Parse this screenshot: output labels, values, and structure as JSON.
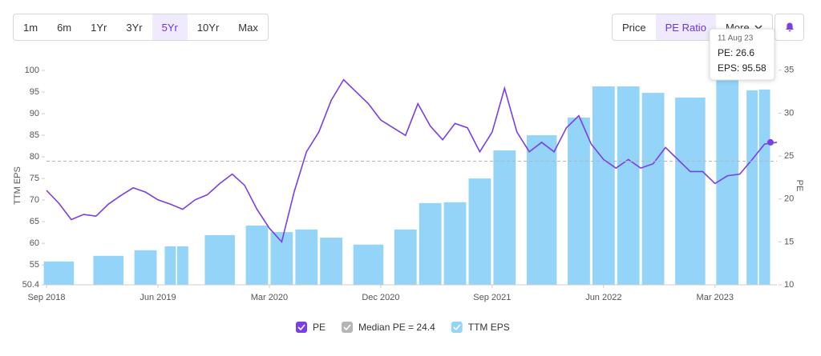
{
  "controls": {
    "ranges": [
      {
        "label": "1m"
      },
      {
        "label": "6m"
      },
      {
        "label": "1Yr"
      },
      {
        "label": "3Yr"
      },
      {
        "label": "5Yr",
        "active": true
      },
      {
        "label": "10Yr"
      },
      {
        "label": "Max"
      }
    ],
    "views": [
      {
        "label": "Price"
      },
      {
        "label": "PE Ratio",
        "active": true
      },
      {
        "label": "More"
      }
    ]
  },
  "tooltip": {
    "date": "11 Aug 23",
    "lines": [
      "PE: 26.6",
      "EPS: 95.58"
    ]
  },
  "chart_data": {
    "type": "bar",
    "y_label": "TTM EPS",
    "y2_label": "PE",
    "xlim": [
      "2018-09",
      "2023-08"
    ],
    "xticks": [
      {
        "value": "2018-09",
        "label": "Sep 2018"
      },
      {
        "value": "2019-06",
        "label": "Jun 2019"
      },
      {
        "value": "2020-03",
        "label": "Mar 2020"
      },
      {
        "value": "2020-12",
        "label": "Dec 2020"
      },
      {
        "value": "2021-09",
        "label": "Sep 2021"
      },
      {
        "value": "2022-06",
        "label": "Jun 2022"
      },
      {
        "value": "2023-03",
        "label": "Mar 2023"
      }
    ],
    "ylim": [
      50.4,
      105
    ],
    "yticks": [
      50.4,
      55,
      60,
      65,
      70,
      75,
      80,
      85,
      90,
      95,
      100
    ],
    "y2lim": [
      10,
      37.5
    ],
    "y2ticks": [
      10,
      15,
      20,
      25,
      30,
      35
    ],
    "series": [
      {
        "name": "PE",
        "type": "line",
        "axis": "y2",
        "color": "#7a3ee8",
        "x": [
          "2018-09",
          "2018-10",
          "2018-11",
          "2018-12",
          "2019-01",
          "2019-02",
          "2019-03",
          "2019-04",
          "2019-05",
          "2019-06",
          "2019-07",
          "2019-08",
          "2019-09",
          "2019-10",
          "2019-11",
          "2019-12",
          "2020-01",
          "2020-02",
          "2020-03",
          "2020-04",
          "2020-05",
          "2020-06",
          "2020-07",
          "2020-08",
          "2020-09",
          "2020-10",
          "2020-11",
          "2020-12",
          "2021-01",
          "2021-02",
          "2021-03",
          "2021-04",
          "2021-05",
          "2021-06",
          "2021-07",
          "2021-08",
          "2021-09",
          "2021-10",
          "2021-11",
          "2021-12",
          "2022-01",
          "2022-02",
          "2022-03",
          "2022-04",
          "2022-05",
          "2022-06",
          "2022-07",
          "2022-08",
          "2022-09",
          "2022-10",
          "2022-11",
          "2022-12",
          "2023-01",
          "2023-02",
          "2023-03",
          "2023-04",
          "2023-05",
          "2023-06",
          "2023-07",
          "2023-08"
        ],
        "values": [
          21.0,
          19.5,
          17.6,
          18.2,
          18.0,
          19.4,
          20.4,
          21.3,
          20.8,
          19.9,
          19.4,
          18.8,
          19.9,
          20.5,
          21.8,
          22.9,
          21.6,
          18.8,
          16.6,
          15.0,
          20.8,
          25.5,
          27.8,
          31.5,
          33.9,
          32.5,
          31.1,
          29.2,
          28.3,
          27.4,
          31.1,
          28.5,
          26.9,
          28.8,
          28.3,
          25.5,
          27.8,
          32.9,
          27.8,
          25.5,
          26.6,
          25.5,
          28.3,
          29.7,
          26.4,
          24.6,
          23.6,
          24.6,
          23.6,
          24.1,
          26.0,
          24.6,
          23.2,
          23.2,
          21.8,
          22.7,
          22.9,
          24.6,
          26.4,
          26.6
        ]
      },
      {
        "name": "TTM EPS",
        "type": "bar",
        "axis": "y",
        "color": "#93d4f8",
        "x": [
          "2018-10",
          "2019-02",
          "2019-05",
          "2019-07",
          "2019-08",
          "2019-11",
          "2020-02",
          "2020-04",
          "2020-06",
          "2020-08",
          "2020-11",
          "2021-02",
          "2021-04",
          "2021-06",
          "2021-08",
          "2021-10",
          "2022-01",
          "2022-04",
          "2022-06",
          "2022-08",
          "2022-10",
          "2023-01",
          "2023-04",
          "2023-06",
          "2023-07"
        ],
        "values": [
          55.8,
          57.1,
          58.4,
          59.3,
          59.3,
          61.9,
          64.1,
          62.6,
          63.2,
          61.3,
          59.7,
          63.2,
          69.3,
          69.5,
          75.0,
          81.5,
          85.0,
          89.1,
          96.3,
          96.3,
          94.8,
          93.7,
          100.6,
          95.4,
          95.58
        ]
      }
    ],
    "reference_line": {
      "name": "Median PE = 24.4",
      "value": 24.4,
      "axis": "y2",
      "color": "#b5b5b5"
    }
  }
}
